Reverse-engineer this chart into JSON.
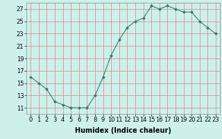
{
  "x": [
    0,
    1,
    2,
    3,
    4,
    5,
    6,
    7,
    8,
    9,
    10,
    11,
    12,
    13,
    14,
    15,
    16,
    17,
    18,
    19,
    20,
    21,
    22,
    23
  ],
  "y": [
    16,
    15,
    14,
    12,
    11.5,
    11,
    11,
    11,
    13,
    16,
    19.5,
    22,
    24,
    25,
    25.5,
    27.5,
    27,
    27.5,
    27,
    26.5,
    26.5,
    25,
    24,
    23
  ],
  "title": "",
  "xlabel": "Humidex (Indice chaleur)",
  "ylabel": "",
  "xlim": [
    -0.5,
    23.5
  ],
  "ylim": [
    10.0,
    28.0
  ],
  "yticks": [
    11,
    13,
    15,
    17,
    19,
    21,
    23,
    25,
    27
  ],
  "xticks": [
    0,
    1,
    2,
    3,
    4,
    5,
    6,
    7,
    8,
    9,
    10,
    11,
    12,
    13,
    14,
    15,
    16,
    17,
    18,
    19,
    20,
    21,
    22,
    23
  ],
  "line_color": "#2d7d6e",
  "marker": "D",
  "marker_size": 2.5,
  "bg_color": "#cef0ea",
  "grid_color": "#d08080",
  "axis_fontsize": 7,
  "tick_fontsize": 6,
  "linewidth": 0.8
}
